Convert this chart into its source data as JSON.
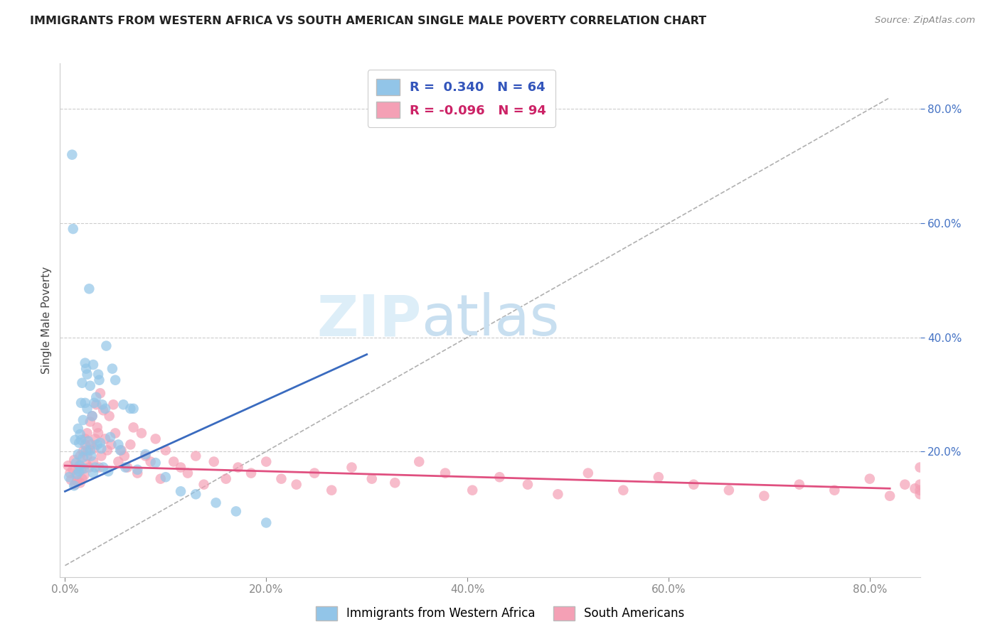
{
  "title": "IMMIGRANTS FROM WESTERN AFRICA VS SOUTH AMERICAN SINGLE MALE POVERTY CORRELATION CHART",
  "source": "Source: ZipAtlas.com",
  "ylabel": "Single Male Poverty",
  "xlim": [
    -0.005,
    0.85
  ],
  "ylim": [
    -0.02,
    0.88
  ],
  "R_blue": 0.34,
  "N_blue": 64,
  "R_pink": -0.096,
  "N_pink": 94,
  "legend_label_blue": "Immigrants from Western Africa",
  "legend_label_pink": "South Americans",
  "color_blue": "#92c5e8",
  "color_pink": "#f4a0b5",
  "line_color_blue": "#3a6bbf",
  "line_color_pink": "#e05080",
  "watermark_zip": "ZIP",
  "watermark_atlas": "atlas",
  "watermark_color": "#ddeef8",
  "blue_scatter_x": [
    0.004,
    0.007,
    0.008,
    0.009,
    0.01,
    0.011,
    0.012,
    0.013,
    0.013,
    0.014,
    0.014,
    0.015,
    0.015,
    0.016,
    0.016,
    0.017,
    0.018,
    0.018,
    0.019,
    0.02,
    0.02,
    0.021,
    0.021,
    0.022,
    0.022,
    0.023,
    0.024,
    0.025,
    0.025,
    0.026,
    0.027,
    0.028,
    0.028,
    0.029,
    0.03,
    0.031,
    0.032,
    0.033,
    0.034,
    0.035,
    0.036,
    0.037,
    0.038,
    0.04,
    0.041,
    0.043,
    0.045,
    0.047,
    0.05,
    0.053,
    0.055,
    0.058,
    0.06,
    0.065,
    0.068,
    0.072,
    0.08,
    0.09,
    0.1,
    0.115,
    0.13,
    0.15,
    0.17,
    0.2
  ],
  "blue_scatter_y": [
    0.155,
    0.72,
    0.59,
    0.14,
    0.22,
    0.18,
    0.16,
    0.24,
    0.195,
    0.215,
    0.165,
    0.23,
    0.175,
    0.285,
    0.22,
    0.32,
    0.255,
    0.19,
    0.17,
    0.355,
    0.285,
    0.202,
    0.345,
    0.275,
    0.335,
    0.218,
    0.485,
    0.202,
    0.315,
    0.192,
    0.262,
    0.352,
    0.162,
    0.285,
    0.172,
    0.295,
    0.212,
    0.335,
    0.325,
    0.215,
    0.205,
    0.282,
    0.172,
    0.275,
    0.385,
    0.165,
    0.225,
    0.345,
    0.325,
    0.212,
    0.202,
    0.282,
    0.172,
    0.275,
    0.275,
    0.168,
    0.195,
    0.18,
    0.155,
    0.13,
    0.125,
    0.11,
    0.095,
    0.075
  ],
  "pink_scatter_x": [
    0.003,
    0.005,
    0.006,
    0.008,
    0.009,
    0.01,
    0.011,
    0.012,
    0.013,
    0.014,
    0.015,
    0.015,
    0.016,
    0.017,
    0.018,
    0.019,
    0.02,
    0.02,
    0.021,
    0.022,
    0.022,
    0.023,
    0.024,
    0.025,
    0.026,
    0.027,
    0.028,
    0.029,
    0.03,
    0.031,
    0.032,
    0.033,
    0.034,
    0.035,
    0.036,
    0.038,
    0.04,
    0.042,
    0.044,
    0.046,
    0.048,
    0.05,
    0.053,
    0.056,
    0.059,
    0.062,
    0.065,
    0.068,
    0.072,
    0.076,
    0.08,
    0.085,
    0.09,
    0.095,
    0.1,
    0.108,
    0.115,
    0.122,
    0.13,
    0.138,
    0.148,
    0.16,
    0.172,
    0.185,
    0.2,
    0.215,
    0.23,
    0.248,
    0.265,
    0.285,
    0.305,
    0.328,
    0.352,
    0.378,
    0.405,
    0.432,
    0.46,
    0.49,
    0.52,
    0.555,
    0.59,
    0.625,
    0.66,
    0.695,
    0.73,
    0.765,
    0.8,
    0.82,
    0.835,
    0.845,
    0.85,
    0.85,
    0.85,
    0.85
  ],
  "pink_scatter_y": [
    0.175,
    0.162,
    0.15,
    0.168,
    0.185,
    0.142,
    0.158,
    0.148,
    0.17,
    0.175,
    0.192,
    0.145,
    0.168,
    0.152,
    0.2,
    0.158,
    0.222,
    0.212,
    0.178,
    0.232,
    0.192,
    0.202,
    0.172,
    0.252,
    0.212,
    0.262,
    0.182,
    0.205,
    0.222,
    0.282,
    0.242,
    0.232,
    0.172,
    0.302,
    0.192,
    0.272,
    0.222,
    0.202,
    0.262,
    0.212,
    0.282,
    0.232,
    0.182,
    0.202,
    0.192,
    0.172,
    0.212,
    0.242,
    0.162,
    0.232,
    0.192,
    0.182,
    0.222,
    0.152,
    0.202,
    0.182,
    0.172,
    0.162,
    0.192,
    0.142,
    0.182,
    0.152,
    0.172,
    0.162,
    0.182,
    0.152,
    0.142,
    0.162,
    0.132,
    0.172,
    0.152,
    0.145,
    0.182,
    0.162,
    0.132,
    0.155,
    0.142,
    0.125,
    0.162,
    0.132,
    0.155,
    0.142,
    0.132,
    0.122,
    0.142,
    0.132,
    0.152,
    0.122,
    0.142,
    0.135,
    0.125,
    0.142,
    0.132,
    0.172
  ]
}
